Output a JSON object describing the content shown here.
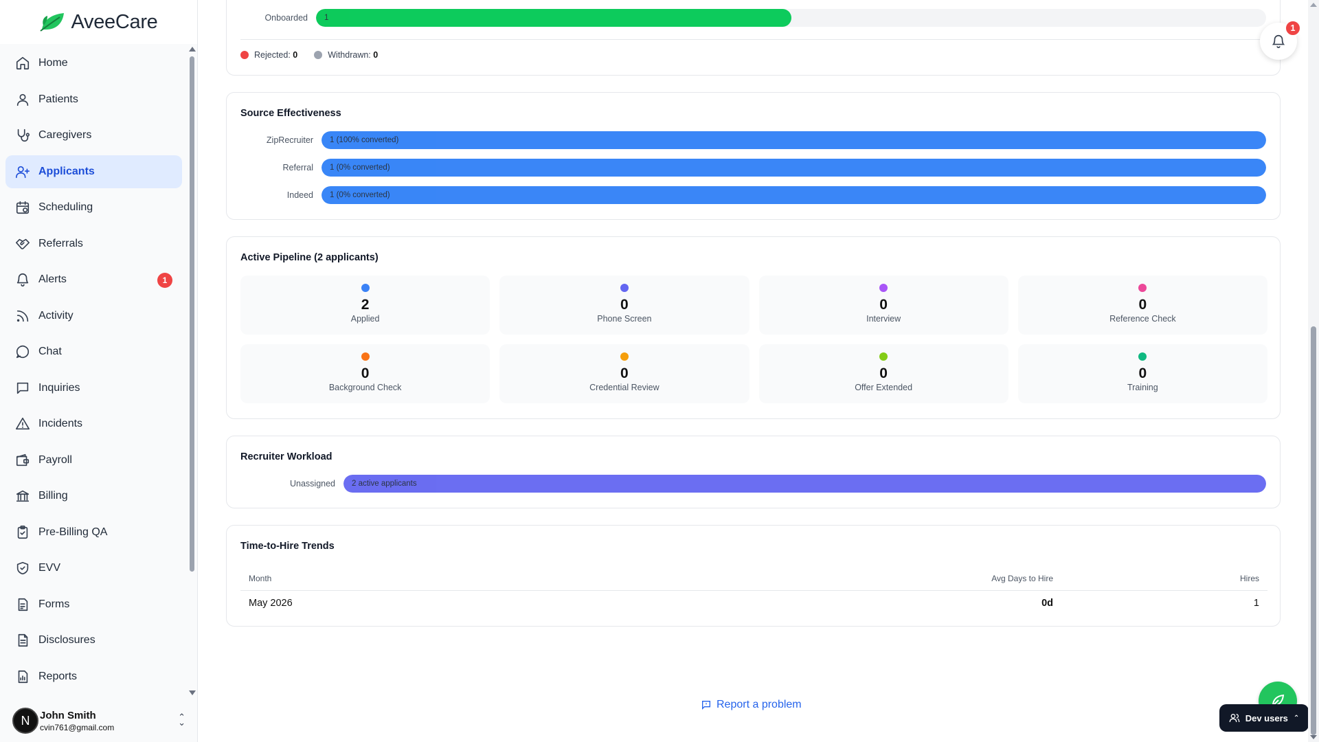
{
  "brand": {
    "name": "AveeCare",
    "accent": "#22c55e"
  },
  "sidebar": {
    "items": [
      {
        "label": "Home",
        "icon": "home-icon"
      },
      {
        "label": "Patients",
        "icon": "user-icon"
      },
      {
        "label": "Caregivers",
        "icon": "stethoscope-icon"
      },
      {
        "label": "Applicants",
        "icon": "user-plus-icon",
        "active": true
      },
      {
        "label": "Scheduling",
        "icon": "calendar-icon"
      },
      {
        "label": "Referrals",
        "icon": "handshake-icon"
      },
      {
        "label": "Alerts",
        "icon": "bell-icon",
        "badge": "1"
      },
      {
        "label": "Activity",
        "icon": "rss-icon"
      },
      {
        "label": "Chat",
        "icon": "chat-bubble-icon"
      },
      {
        "label": "Inquiries",
        "icon": "message-square-icon"
      },
      {
        "label": "Incidents",
        "icon": "warning-triangle-icon"
      },
      {
        "label": "Payroll",
        "icon": "wallet-icon"
      },
      {
        "label": "Billing",
        "icon": "bank-icon"
      },
      {
        "label": "Pre-Billing QA",
        "icon": "clipboard-check-icon"
      },
      {
        "label": "EVV",
        "icon": "shield-check-icon"
      },
      {
        "label": "Forms",
        "icon": "form-document-icon"
      },
      {
        "label": "Disclosures",
        "icon": "document-icon"
      },
      {
        "label": "Reports",
        "icon": "chart-file-icon"
      }
    ]
  },
  "user": {
    "initial": "N",
    "name": "John Smith",
    "email": "cvin761@gmail.com"
  },
  "funnel": {
    "onboarded": {
      "label": "Onboarded",
      "value": "1",
      "fraction": 0.5,
      "color": "#00c853"
    },
    "legend": [
      {
        "label": "Rejected:",
        "value": "0",
        "color": "#ef4444"
      },
      {
        "label": "Withdrawn:",
        "value": "0",
        "color": "#9ca3af"
      }
    ]
  },
  "source": {
    "title": "Source Effectiveness",
    "color": "#2f80f7",
    "rows": [
      {
        "label": "ZipRecruiter",
        "text": "1 (100% converted)",
        "fraction": 1.0
      },
      {
        "label": "Referral",
        "text": "1 (0% converted)",
        "fraction": 1.0
      },
      {
        "label": "Indeed",
        "text": "1 (0% converted)",
        "fraction": 1.0
      }
    ]
  },
  "pipeline": {
    "title": "Active Pipeline (2 applicants)",
    "stages": [
      {
        "count": "2",
        "label": "Applied",
        "color": "#3b82f6"
      },
      {
        "count": "0",
        "label": "Phone Screen",
        "color": "#6366f1"
      },
      {
        "count": "0",
        "label": "Interview",
        "color": "#a855f7"
      },
      {
        "count": "0",
        "label": "Reference Check",
        "color": "#ec4899"
      },
      {
        "count": "0",
        "label": "Background Check",
        "color": "#f97316"
      },
      {
        "count": "0",
        "label": "Credential Review",
        "color": "#f59e0b"
      },
      {
        "count": "0",
        "label": "Offer Extended",
        "color": "#84cc16"
      },
      {
        "count": "0",
        "label": "Training",
        "color": "#10b981"
      }
    ]
  },
  "workload": {
    "title": "Recruiter Workload",
    "color": "#6366f1",
    "rows": [
      {
        "label": "Unassigned",
        "text": "2 active applicants",
        "fraction": 1.0
      }
    ]
  },
  "trends": {
    "title": "Time-to-Hire Trends",
    "headers": {
      "month": "Month",
      "avg": "Avg Days to Hire",
      "hires": "Hires"
    },
    "rows": [
      {
        "month": "May 2026",
        "avg": "0d",
        "hires": "1"
      }
    ]
  },
  "footer": {
    "report": "Report a problem"
  },
  "notifications": {
    "count": "1"
  },
  "dev": {
    "label": "Dev users"
  }
}
